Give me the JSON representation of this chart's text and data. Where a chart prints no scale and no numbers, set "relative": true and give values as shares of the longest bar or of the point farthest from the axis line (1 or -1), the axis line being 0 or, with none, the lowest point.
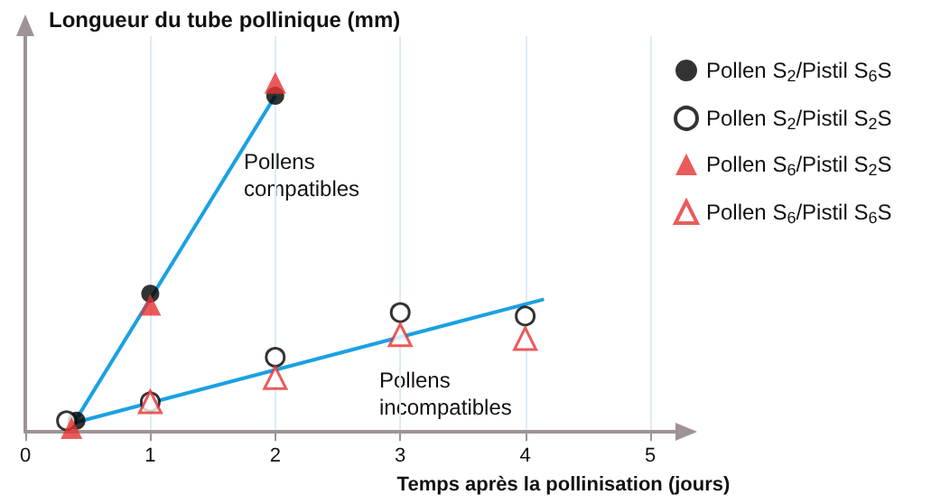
{
  "chart_data": {
    "type": "scatter",
    "title": "Longueur du tube pollinique (mm)",
    "xlabel": "Temps après la pollinisation (jours)",
    "relative": true,
    "xlim": [
      0,
      5
    ],
    "xticks": [
      0,
      1,
      2,
      3,
      4,
      5
    ],
    "grid": "x",
    "legend": "right",
    "series": [
      {
        "name": "Pollen S$_{2}$/Pistil S$_{6}$S",
        "color": "#000000",
        "marker": "circle",
        "x": [
          0.41,
          1,
          2
        ],
        "values": [
          0.032,
          0.396,
          0.963
        ]
      },
      {
        "name": "Pollen S$_{2}$/Pistil S$_{2}$S",
        "color": "#000000",
        "marker": "circle",
        "x": [
          0.33,
          1,
          2,
          3,
          4
        ],
        "values": [
          0.032,
          0.086,
          0.214,
          0.342,
          0.332
        ]
      },
      {
        "name": "Pollen S$_{6}$/Pistil S$_{2}$S",
        "color": "#e63232",
        "marker": "triangle",
        "x": [
          0.37,
          1,
          2
        ],
        "values": [
          0.011,
          0.364,
          1
        ]
      },
      {
        "name": "Pollen S$_{6}$/Pistil S$_{6}$S",
        "color": "#e63232",
        "marker": "triangle",
        "x": [
          1,
          2,
          3,
          4
        ],
        "values": [
          0.086,
          0.155,
          0.278,
          0.267
        ]
      },
      {
        "type": "line",
        "color": "#1ba1e2",
        "x": [
          0.4,
          2
        ],
        "values": [
          0.032,
          0.963
        ]
      },
      {
        "type": "line",
        "color": "#1ba1e2",
        "x": [
          0.4,
          4.15
        ],
        "values": [
          0.027,
          0.38
        ]
      }
    ],
    "annotations": [
      "Pollens\ncompatibles",
      "Pollens\nincompatibles"
    ]
  }
}
